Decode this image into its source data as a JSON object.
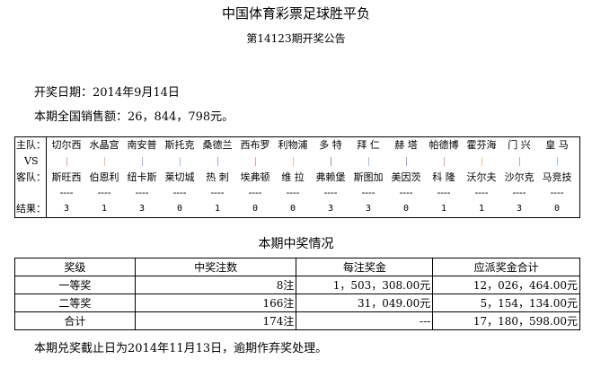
{
  "title": "中国体育彩票足球胜平负",
  "subtitle": "第14123期开奖公告",
  "draw_date": "开奖日期：2014年9月14日",
  "sales": "本期全国销售额：26，844，798元。",
  "labels": {
    "home": "主队：",
    "vs": "VS",
    "away": "客队：",
    "result": "结果："
  },
  "matches": [
    {
      "home": "切尔西",
      "away": "斯旺西",
      "result": "3",
      "bar": "#e0a0b0"
    },
    {
      "home": "水晶宫",
      "away": "伯恩利",
      "result": "1",
      "bar": "#f0c090"
    },
    {
      "home": "南安普",
      "away": "纽卡斯",
      "result": "3",
      "bar": "#b0b0d8"
    },
    {
      "home": "斯托克",
      "away": "莱切城",
      "result": "0",
      "bar": "#a0c0e0"
    },
    {
      "home": "桑德兰",
      "away": "热 刺",
      "result": "1",
      "bar": "#b0a0d0"
    },
    {
      "home": "西布罗",
      "away": "埃弗顿",
      "result": "0",
      "bar": "#e0a0b0"
    },
    {
      "home": "利物浦",
      "away": "维 拉",
      "result": "0",
      "bar": "#f0c090"
    },
    {
      "home": "多 特",
      "away": "弗赖堡",
      "result": "3",
      "bar": "#a0a0a0"
    },
    {
      "home": "拜 仁",
      "away": "斯图加",
      "result": "3",
      "bar": "#a0c0e0"
    },
    {
      "home": "赫 塔",
      "away": "美因茨",
      "result": "0",
      "bar": "#b0a0d0"
    },
    {
      "home": "帕德博",
      "away": "科 隆",
      "result": "1",
      "bar": "#e0a0b0"
    },
    {
      "home": "霍芬海",
      "away": "沃尔夫",
      "result": "1",
      "bar": "#f0c090"
    },
    {
      "home": "门 兴",
      "away": "沙尔克",
      "result": "3",
      "bar": "#a0b0c0"
    },
    {
      "home": "皇 马",
      "away": "马竞技",
      "result": "0",
      "bar": "#a0c8e8"
    }
  ],
  "dash": "----",
  "prize_heading": "本期中奖情况",
  "prize_headers": [
    "奖级",
    "中奖注数",
    "每注奖金",
    "应派奖金合计"
  ],
  "prize_rows": [
    [
      "一等奖",
      "8注",
      "1，503，308.00元",
      "12，026，464.00元"
    ],
    [
      "二等奖",
      "166注",
      "31，049.00元",
      "5，154，134.00元"
    ],
    [
      "合计",
      "174注",
      "---",
      "17，180，598.00元"
    ]
  ],
  "footer": "本期兑奖截止日为2014年11月13日，逾期作弃奖处理。"
}
